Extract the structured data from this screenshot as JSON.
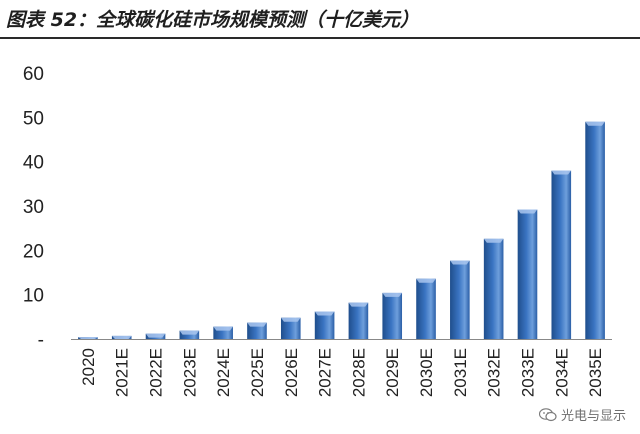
{
  "title": "图表 52：全球碳化硅市场规模预测（十亿美元）",
  "watermark": "光电与显示",
  "colors": {
    "bar_dark": "#1f4e8c",
    "bar_mid": "#3a74c2",
    "bar_light": "#6e9fdc",
    "axis": "#888888"
  },
  "chart_data": {
    "type": "bar",
    "title": "图表 52：全球碳化硅市场规模预测（十亿美元）",
    "xlabel": "",
    "ylabel": "",
    "ylim": [
      0,
      60
    ],
    "yticks": [
      "-",
      "10",
      "20",
      "30",
      "40",
      "50",
      "60"
    ],
    "grid": false,
    "legend": "none",
    "categories": [
      "2020",
      "2021E",
      "2022E",
      "2023E",
      "2024E",
      "2025E",
      "2026E",
      "2027E",
      "2028E",
      "2029E",
      "2030E",
      "2031E",
      "2032E",
      "2033E",
      "2034E",
      "2035E"
    ],
    "values": [
      0.4,
      0.7,
      1.2,
      1.9,
      2.8,
      3.7,
      4.8,
      6.2,
      8.2,
      10.4,
      13.6,
      17.7,
      22.6,
      29.2,
      38.0,
      49.0
    ]
  }
}
